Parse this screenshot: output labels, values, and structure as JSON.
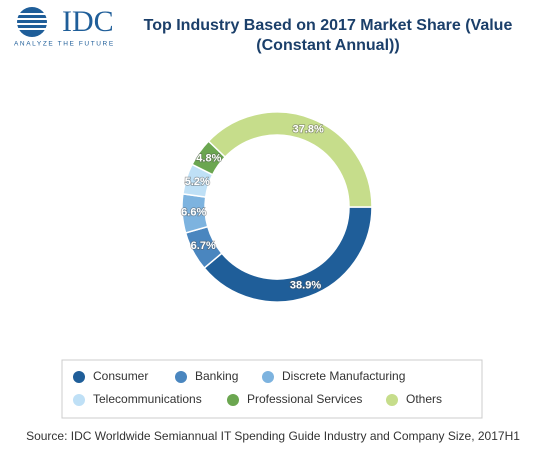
{
  "logo": {
    "name": "IDC",
    "tagline": "ANALYZE THE FUTURE"
  },
  "chart_data": {
    "type": "donut",
    "title": "Top Industry Based on 2017 Market Share (Value (Constant Annual))",
    "categories": [
      "Consumer",
      "Banking",
      "Discrete Manufacturing",
      "Telecommunications",
      "Professional Services",
      "Others"
    ],
    "values": [
      38.9,
      6.7,
      6.6,
      5.2,
      4.8,
      37.8
    ],
    "value_labels": [
      "38.9%",
      "6.7%",
      "6.6%",
      "5.2%",
      "4.8%",
      "37.8%"
    ],
    "colors": [
      "#1f5e99",
      "#4a86bf",
      "#7db3df",
      "#bfe0f6",
      "#6ba650",
      "#c6dd8b"
    ],
    "legend": "bottom",
    "source": "Source: IDC Worldwide Semiannual IT Spending Guide Industry and Company Size, 2017H1"
  }
}
